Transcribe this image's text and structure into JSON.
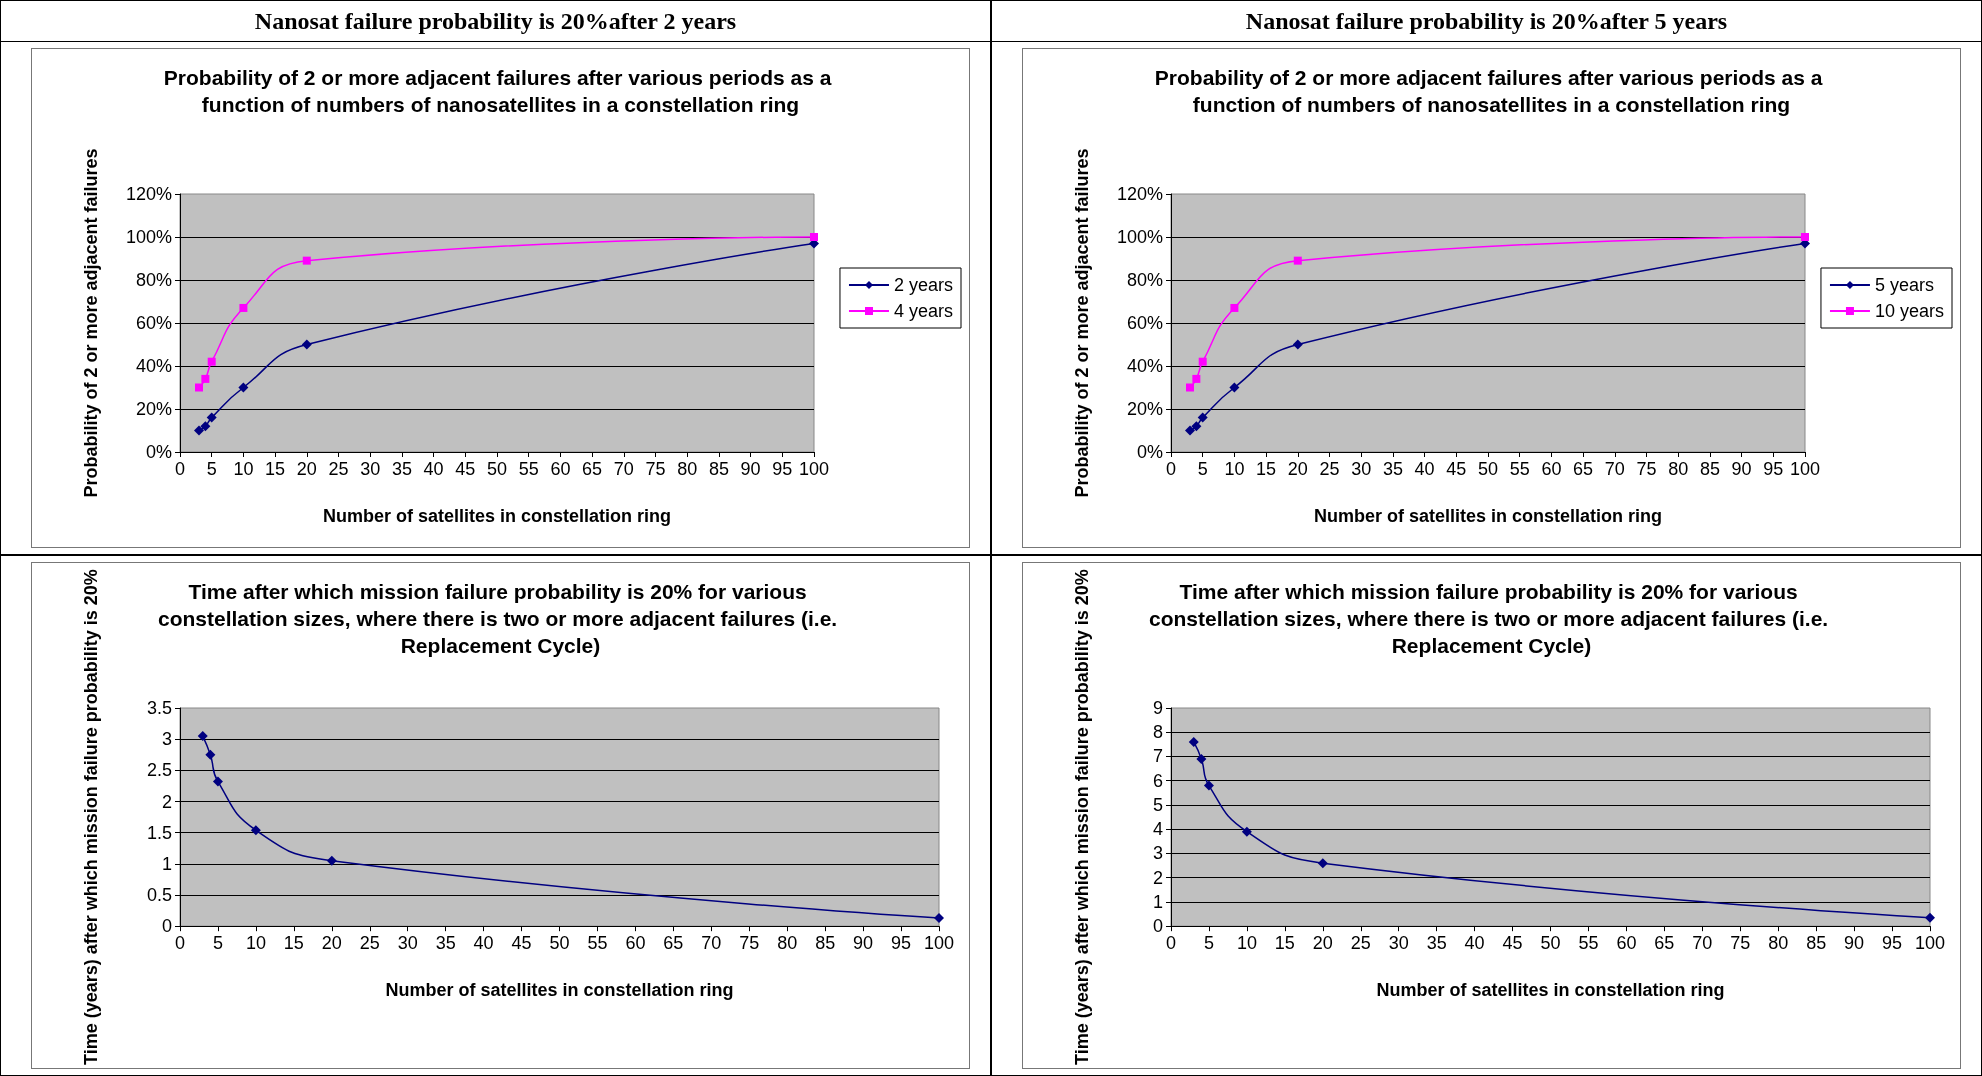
{
  "chart_data": [
    {
      "type": "line",
      "subtitle": "Nanosat failure probability is 20%after 2 years",
      "title": "Probability of 2 or more adjacent failures after various periods as a function of numbers of nanosatellites in a constellation ring",
      "xlabel": "Number of satellites in constellation ring",
      "ylabel": "Probability of 2 or more adjacent failures",
      "x": [
        3,
        4,
        5,
        10,
        20,
        100
      ],
      "series": [
        {
          "name": "2 years",
          "color": "#000080",
          "marker": "diamond",
          "values": [
            10,
            12,
            16,
            30,
            50,
            97
          ]
        },
        {
          "name": "4 years",
          "color": "#ff00ff",
          "marker": "square",
          "values": [
            30,
            34,
            42,
            67,
            89,
            100
          ]
        }
      ],
      "xlim": [
        0,
        100
      ],
      "xticks": [
        0,
        5,
        10,
        15,
        20,
        25,
        30,
        35,
        40,
        45,
        50,
        55,
        60,
        65,
        70,
        75,
        80,
        85,
        90,
        95,
        100
      ],
      "ylim": [
        0,
        120
      ],
      "yticks": [
        {
          "value": 0,
          "label": "0%"
        },
        {
          "value": 20,
          "label": "20%"
        },
        {
          "value": 40,
          "label": "40%"
        },
        {
          "value": 60,
          "label": "60%"
        },
        {
          "value": 80,
          "label": "80%"
        },
        {
          "value": 100,
          "label": "100%"
        },
        {
          "value": 120,
          "label": "120%"
        }
      ],
      "grid": "y",
      "legend": "right"
    },
    {
      "type": "line",
      "subtitle": "Nanosat failure probability is 20%after 5 years",
      "title": "Probability of 2 or more adjacent failures after various periods as a function of numbers of nanosatellites in a constellation ring",
      "xlabel": "Number of satellites in constellation ring",
      "ylabel": "Probability of 2 or more adjacent failures",
      "x": [
        3,
        4,
        5,
        10,
        20,
        100
      ],
      "series": [
        {
          "name": "5 years",
          "color": "#000080",
          "marker": "diamond",
          "values": [
            10,
            12,
            16,
            30,
            50,
            97
          ]
        },
        {
          "name": "10 years",
          "color": "#ff00ff",
          "marker": "square",
          "values": [
            30,
            34,
            42,
            67,
            89,
            100
          ]
        }
      ],
      "xlim": [
        0,
        100
      ],
      "xticks": [
        0,
        5,
        10,
        15,
        20,
        25,
        30,
        35,
        40,
        45,
        50,
        55,
        60,
        65,
        70,
        75,
        80,
        85,
        90,
        95,
        100
      ],
      "ylim": [
        0,
        120
      ],
      "yticks": [
        {
          "value": 0,
          "label": "0%"
        },
        {
          "value": 20,
          "label": "20%"
        },
        {
          "value": 40,
          "label": "40%"
        },
        {
          "value": 60,
          "label": "60%"
        },
        {
          "value": 80,
          "label": "80%"
        },
        {
          "value": 100,
          "label": "100%"
        },
        {
          "value": 120,
          "label": "120%"
        }
      ],
      "grid": "y",
      "legend": "right"
    },
    {
      "type": "line",
      "title": "Time after which mission failure probability is 20% for various constellation sizes, where there is two or more adjacent failures (i.e. Replacement Cycle)",
      "xlabel": "Number of satellites in constellation ring",
      "ylabel": "Time (years) after which mission failure probability is 20%",
      "x": [
        3,
        4,
        5,
        10,
        20,
        100
      ],
      "series": [
        {
          "color": "#000080",
          "marker": "diamond",
          "values": [
            3.05,
            2.75,
            2.32,
            1.54,
            1.05,
            0.13
          ]
        }
      ],
      "xlim": [
        0,
        100
      ],
      "xticks": [
        0,
        5,
        10,
        15,
        20,
        25,
        30,
        35,
        40,
        45,
        50,
        55,
        60,
        65,
        70,
        75,
        80,
        85,
        90,
        95,
        100
      ],
      "ylim": [
        0,
        3.5
      ],
      "yticks": [
        0,
        0.5,
        1,
        1.5,
        2,
        2.5,
        3,
        3.5
      ],
      "grid": "y"
    },
    {
      "type": "line",
      "title": "Time after which mission failure probability is 20% for various constellation sizes, where there is two or more adjacent failures (i.e. Replacement Cycle)",
      "xlabel": "Number of satellites in constellation ring",
      "ylabel": "Time (years) after which mission failure probability is 20%",
      "x": [
        3,
        4,
        5,
        10,
        20,
        100
      ],
      "series": [
        {
          "color": "#000080",
          "marker": "diamond",
          "values": [
            7.6,
            6.9,
            5.8,
            3.9,
            2.6,
            0.35
          ]
        }
      ],
      "xlim": [
        0,
        100
      ],
      "xticks": [
        0,
        5,
        10,
        15,
        20,
        25,
        30,
        35,
        40,
        45,
        50,
        55,
        60,
        65,
        70,
        75,
        80,
        85,
        90,
        95,
        100
      ],
      "ylim": [
        0,
        9
      ],
      "yticks": [
        0,
        1,
        2,
        3,
        4,
        5,
        6,
        7,
        8,
        9
      ],
      "grid": "y"
    }
  ]
}
